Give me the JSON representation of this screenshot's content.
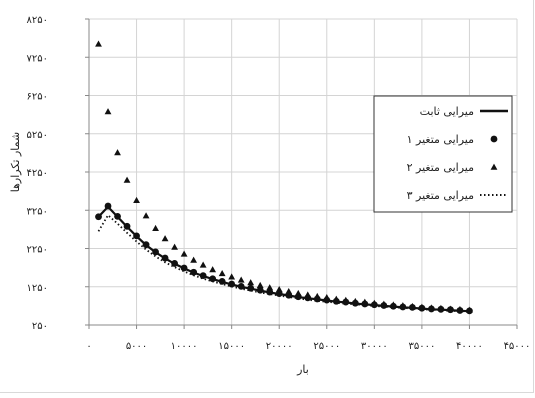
{
  "chart_data": {
    "type": "scatter",
    "title": "",
    "xlabel": "بار",
    "ylabel": "شمار تکرارها",
    "xlim": [
      0,
      45000
    ],
    "ylim": [
      250,
      8250
    ],
    "grid": true,
    "legend_position": "right",
    "x_ticks": [
      0,
      5000,
      10000,
      15000,
      20000,
      25000,
      30000,
      35000,
      40000,
      45000
    ],
    "x_tick_labels": [
      "۰",
      "۵۰۰۰",
      "۱۰۰۰۰",
      "۱۵۰۰۰",
      "۲۰۰۰۰",
      "۲۵۰۰۰",
      "۳۰۰۰۰",
      "۳۵۰۰۰",
      "۴۰۰۰۰",
      "۴۵۰۰۰"
    ],
    "y_ticks": [
      250,
      1250,
      2250,
      3250,
      4250,
      5250,
      6250,
      7250,
      8250
    ],
    "y_tick_labels": [
      "۲۵۰",
      "۱۲۵۰",
      "۲۲۵۰",
      "۳۲۵۰",
      "۴۲۵۰",
      "۵۲۵۰",
      "۶۲۵۰",
      "۷۲۵۰",
      "۸۲۵۰"
    ],
    "x": [
      1000,
      2000,
      3000,
      4000,
      5000,
      6000,
      7000,
      8000,
      9000,
      10000,
      11000,
      12000,
      13000,
      14000,
      15000,
      16000,
      17000,
      18000,
      19000,
      20000,
      21000,
      22000,
      23000,
      24000,
      25000,
      26000,
      27000,
      28000,
      29000,
      30000,
      31000,
      32000,
      33000,
      34000,
      35000,
      36000,
      37000,
      38000,
      39000,
      40000
    ],
    "series": [
      {
        "name": "میرایی ثابت",
        "style": "solid-line",
        "values": [
          3080,
          3340,
          3080,
          2820,
          2570,
          2340,
          2150,
          1990,
          1850,
          1730,
          1620,
          1530,
          1450,
          1380,
          1310,
          1250,
          1200,
          1150,
          1100,
          1060,
          1020,
          980,
          950,
          920,
          890,
          860,
          840,
          810,
          790,
          770,
          750,
          730,
          710,
          700,
          680,
          660,
          650,
          640,
          620,
          610
        ]
      },
      {
        "name": "میرایی متغیر ۱",
        "style": "circle-markers",
        "values": [
          3080,
          3360,
          3090,
          2830,
          2580,
          2350,
          2160,
          2000,
          1860,
          1740,
          1630,
          1540,
          1460,
          1390,
          1320,
          1260,
          1210,
          1160,
          1110,
          1070,
          1030,
          990,
          960,
          930,
          900,
          870,
          850,
          820,
          800,
          780,
          760,
          740,
          720,
          710,
          690,
          670,
          660,
          650,
          630,
          620
        ]
      },
      {
        "name": "میرایی متغیر ۲",
        "style": "triangle-markers",
        "values": [
          7600,
          5830,
          4760,
          4040,
          3510,
          3110,
          2780,
          2510,
          2290,
          2110,
          1950,
          1820,
          1700,
          1600,
          1510,
          1430,
          1360,
          1290,
          1230,
          1180,
          1130,
          1080,
          1040,
          1000,
          970,
          930,
          900,
          870,
          850,
          820,
          800,
          780,
          760,
          740,
          720,
          700,
          690,
          670,
          660,
          640
        ]
      },
      {
        "name": "میرایی متغیر ۳",
        "style": "dotted-line",
        "values": [
          2700,
          3120,
          2900,
          2660,
          2430,
          2220,
          2040,
          1890,
          1760,
          1650,
          1550,
          1460,
          1390,
          1320,
          1260,
          1200,
          1150,
          1100,
          1060,
          1020,
          980,
          950,
          910,
          880,
          860,
          830,
          810,
          790,
          770,
          750,
          730,
          710,
          700,
          680,
          660,
          650,
          640,
          620,
          610,
          600
        ]
      }
    ]
  }
}
